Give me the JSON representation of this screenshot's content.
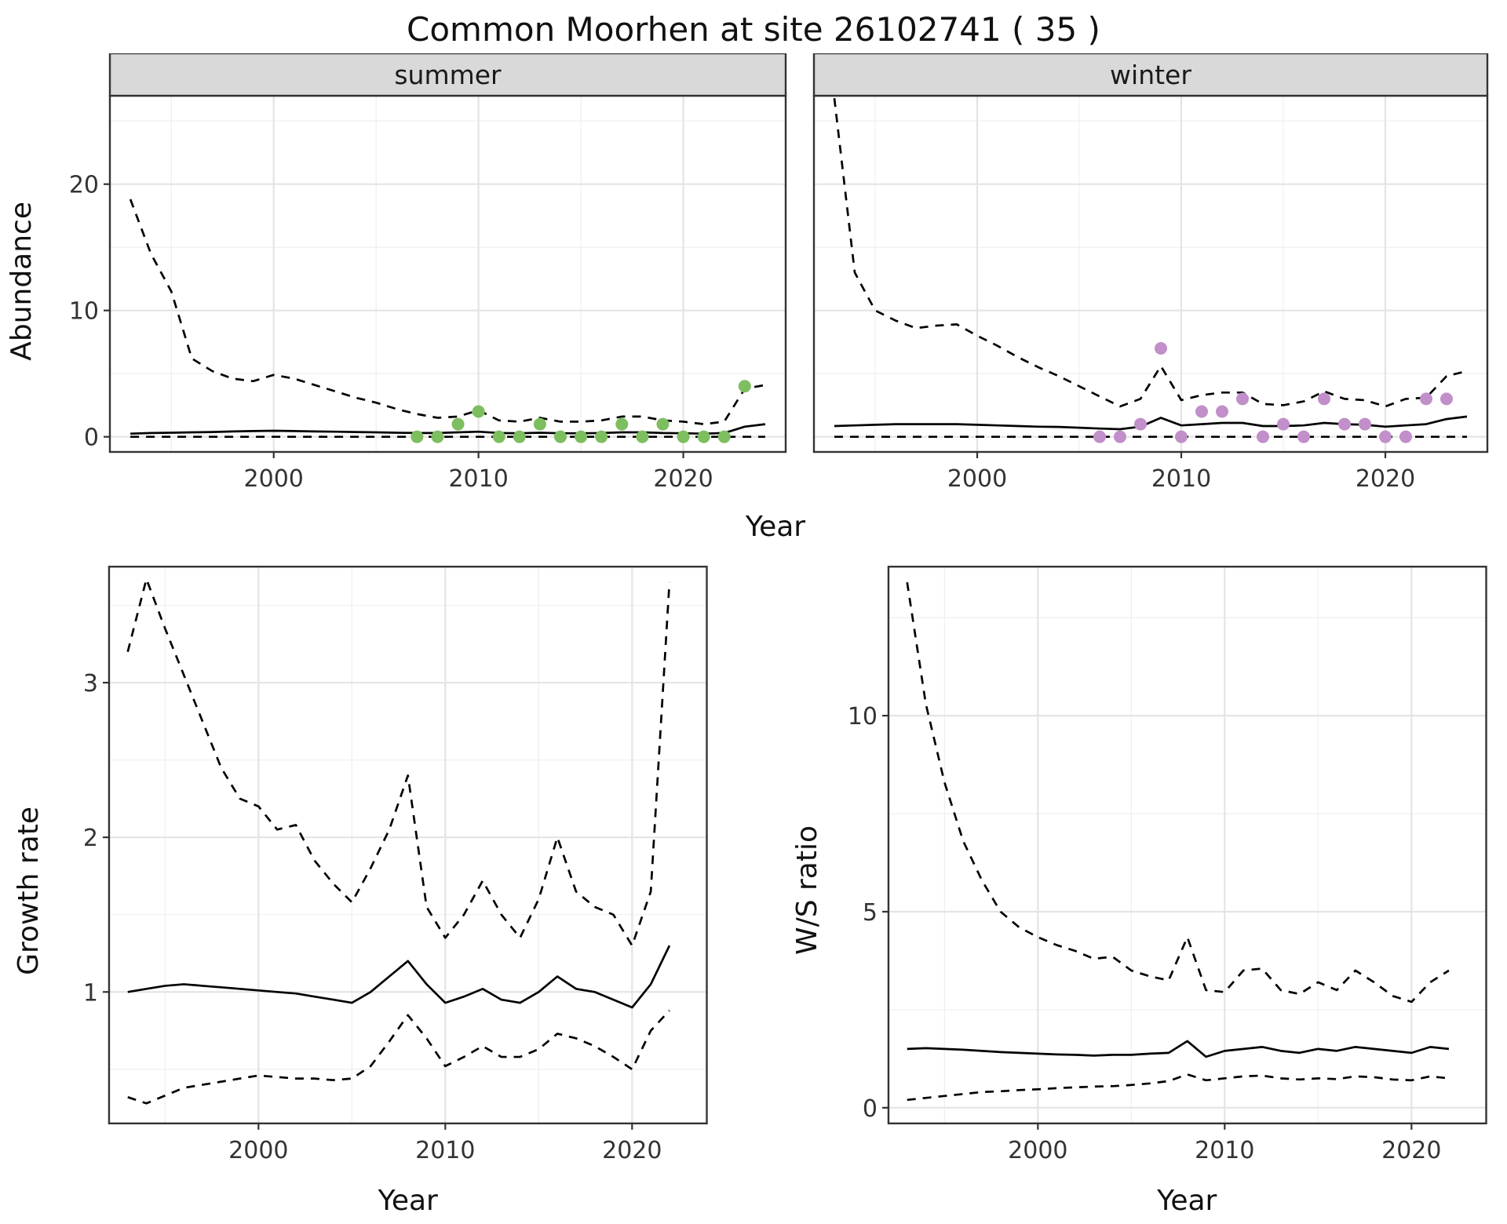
{
  "title": "Common Moorhen at site 26102741 ( 35 )",
  "style": {
    "summer_point_color": "#7DBE5F",
    "winter_point_color": "#C18FC9",
    "line_color": "#000000",
    "strip_bg": "#D9D9D9",
    "panel_border": "#333333",
    "grid_major": "#E4E4E4",
    "grid_minor": "#F0F0F0",
    "tick_text": "#333333"
  },
  "chart_data": {
    "type": "line",
    "title": "Common Moorhen at site 26102741 ( 35 )",
    "grid": true,
    "legend": "none",
    "panels": {
      "abundance_summer": {
        "facet_label": "summer",
        "xlabel": "Year",
        "ylabel": "Abundance",
        "xlim": [
          1992,
          2025
        ],
        "ylim": [
          -1.2,
          27
        ],
        "xticks": [
          2000,
          2010,
          2020
        ],
        "yticks": [
          0,
          10,
          20
        ],
        "show_y_axis": true,
        "series": [
          {
            "name": "upper-ci",
            "style": "dashed",
            "x_start": 1993,
            "y": [
              18.8,
              14.5,
              11.5,
              6.2,
              5.2,
              4.6,
              4.4,
              4.9,
              4.6,
              4.1,
              3.6,
              3.1,
              2.7,
              2.2,
              1.8,
              1.5,
              1.6,
              2.1,
              1.3,
              1.2,
              1.5,
              1.2,
              1.2,
              1.3,
              1.6,
              1.6,
              1.3,
              1.2,
              1.0,
              1.2,
              3.8,
              4.1
            ]
          },
          {
            "name": "mean",
            "style": "solid",
            "x_start": 1993,
            "y": [
              0.25,
              0.3,
              0.32,
              0.35,
              0.38,
              0.42,
              0.45,
              0.48,
              0.45,
              0.42,
              0.4,
              0.38,
              0.35,
              0.32,
              0.3,
              0.3,
              0.35,
              0.4,
              0.3,
              0.28,
              0.32,
              0.28,
              0.28,
              0.3,
              0.35,
              0.35,
              0.3,
              0.28,
              0.25,
              0.3,
              0.8,
              1.0
            ]
          },
          {
            "name": "lower-ci",
            "style": "dashed",
            "x_start": 1993,
            "y": [
              0,
              0,
              0,
              0,
              0,
              0,
              0,
              0,
              0,
              0,
              0,
              0,
              0,
              0,
              0,
              0,
              0,
              0,
              0,
              0,
              0,
              0,
              0,
              0,
              0,
              0,
              0,
              0,
              0,
              0,
              0,
              0
            ]
          },
          {
            "name": "observations",
            "style": "points",
            "color": "#7DBE5F",
            "x_start": 2007,
            "y": [
              0,
              0,
              1,
              2,
              0,
              0,
              1,
              0,
              0,
              0,
              1,
              0,
              1,
              0,
              0,
              0,
              4
            ]
          }
        ]
      },
      "abundance_winter": {
        "facet_label": "winter",
        "xlabel": "Year",
        "ylabel": "Abundance",
        "xlim": [
          1992,
          2025
        ],
        "ylim": [
          -1.2,
          27
        ],
        "xticks": [
          2000,
          2010,
          2020
        ],
        "yticks": [
          0,
          10,
          20
        ],
        "show_y_axis": false,
        "series": [
          {
            "name": "upper-ci",
            "style": "dashed",
            "x_start": 1993,
            "y": [
              26.8,
              13.0,
              10.0,
              9.2,
              8.6,
              8.8,
              8.9,
              8.0,
              7.2,
              6.3,
              5.5,
              4.8,
              4.0,
              3.2,
              2.4,
              3.0,
              5.6,
              2.9,
              3.3,
              3.5,
              3.5,
              2.6,
              2.5,
              2.8,
              3.6,
              3.0,
              2.9,
              2.4,
              3.0,
              3.1,
              4.8,
              5.2
            ]
          },
          {
            "name": "mean",
            "style": "solid",
            "x_start": 1993,
            "y": [
              0.85,
              0.9,
              0.95,
              1.0,
              1.0,
              1.0,
              1.0,
              0.95,
              0.9,
              0.85,
              0.8,
              0.78,
              0.72,
              0.65,
              0.6,
              0.8,
              1.5,
              0.9,
              1.0,
              1.1,
              1.1,
              0.85,
              0.85,
              0.9,
              1.1,
              1.0,
              0.95,
              0.8,
              0.9,
              1.0,
              1.4,
              1.6
            ]
          },
          {
            "name": "lower-ci",
            "style": "dashed",
            "x_start": 1993,
            "y": [
              0,
              0,
              0,
              0,
              0,
              0,
              0,
              0,
              0,
              0,
              0,
              0,
              0,
              0,
              0,
              0,
              0,
              0,
              0,
              0,
              0,
              0,
              0,
              0,
              0,
              0,
              0,
              0,
              0,
              0,
              0,
              0
            ]
          },
          {
            "name": "observations",
            "style": "points",
            "color": "#C18FC9",
            "x_start": 2006,
            "y": [
              0,
              0,
              1,
              7,
              0,
              2,
              2,
              3,
              0,
              1,
              0,
              3,
              1,
              1,
              0,
              0,
              3,
              3
            ]
          }
        ]
      },
      "growth_rate": {
        "xlabel": "Year",
        "ylabel": "Growth rate",
        "xlim": [
          1992,
          2024
        ],
        "ylim": [
          0.15,
          3.75
        ],
        "xticks": [
          2000,
          2010,
          2020
        ],
        "yticks": [
          1,
          2,
          3
        ],
        "show_y_axis": true,
        "series": [
          {
            "name": "upper-ci",
            "style": "dashed",
            "x_start": 1993,
            "y": [
              3.2,
              3.67,
              3.35,
              3.05,
              2.75,
              2.45,
              2.25,
              2.2,
              2.05,
              2.08,
              1.85,
              1.7,
              1.58,
              1.8,
              2.05,
              2.4,
              1.55,
              1.35,
              1.5,
              1.72,
              1.5,
              1.35,
              1.6,
              2.0,
              1.65,
              1.55,
              1.5,
              1.3,
              1.65,
              3.65
            ]
          },
          {
            "name": "mean",
            "style": "solid",
            "x_start": 1993,
            "y": [
              1.0,
              1.02,
              1.04,
              1.05,
              1.04,
              1.03,
              1.02,
              1.01,
              1.0,
              0.99,
              0.97,
              0.95,
              0.93,
              1.0,
              1.1,
              1.2,
              1.05,
              0.93,
              0.97,
              1.02,
              0.95,
              0.93,
              1.0,
              1.1,
              1.02,
              1.0,
              0.95,
              0.9,
              1.05,
              1.3
            ]
          },
          {
            "name": "lower-ci",
            "style": "dashed",
            "x_start": 1993,
            "y": [
              0.32,
              0.28,
              0.33,
              0.38,
              0.4,
              0.42,
              0.44,
              0.46,
              0.45,
              0.44,
              0.44,
              0.43,
              0.44,
              0.52,
              0.68,
              0.85,
              0.7,
              0.52,
              0.58,
              0.65,
              0.58,
              0.58,
              0.63,
              0.73,
              0.7,
              0.65,
              0.58,
              0.5,
              0.75,
              0.88
            ]
          }
        ]
      },
      "ws_ratio": {
        "xlabel": "Year",
        "ylabel": "W/S ratio",
        "xlim": [
          1992,
          2024
        ],
        "ylim": [
          -0.4,
          13.8
        ],
        "xticks": [
          2000,
          2010,
          2020
        ],
        "yticks": [
          0,
          5,
          10
        ],
        "show_y_axis": true,
        "series": [
          {
            "name": "upper-ci",
            "style": "dashed",
            "x_start": 1993,
            "y": [
              13.4,
              10.3,
              8.3,
              6.8,
              5.8,
              5.0,
              4.6,
              4.35,
              4.15,
              4.0,
              3.8,
              3.85,
              3.5,
              3.35,
              3.25,
              4.35,
              3.0,
              2.95,
              3.5,
              3.55,
              3.0,
              2.9,
              3.2,
              3.0,
              3.5,
              3.2,
              2.85,
              2.7,
              3.2,
              3.5
            ]
          },
          {
            "name": "mean",
            "style": "solid",
            "x_start": 1993,
            "y": [
              1.5,
              1.52,
              1.5,
              1.48,
              1.45,
              1.42,
              1.4,
              1.38,
              1.36,
              1.35,
              1.33,
              1.35,
              1.35,
              1.38,
              1.4,
              1.7,
              1.3,
              1.45,
              1.5,
              1.55,
              1.45,
              1.4,
              1.5,
              1.45,
              1.55,
              1.5,
              1.45,
              1.4,
              1.55,
              1.5
            ]
          },
          {
            "name": "lower-ci",
            "style": "dashed",
            "x_start": 1993,
            "y": [
              0.2,
              0.25,
              0.3,
              0.35,
              0.4,
              0.42,
              0.45,
              0.47,
              0.5,
              0.52,
              0.54,
              0.55,
              0.58,
              0.62,
              0.68,
              0.85,
              0.7,
              0.75,
              0.8,
              0.82,
              0.75,
              0.72,
              0.75,
              0.73,
              0.8,
              0.78,
              0.72,
              0.7,
              0.8,
              0.75
            ]
          }
        ]
      }
    }
  }
}
